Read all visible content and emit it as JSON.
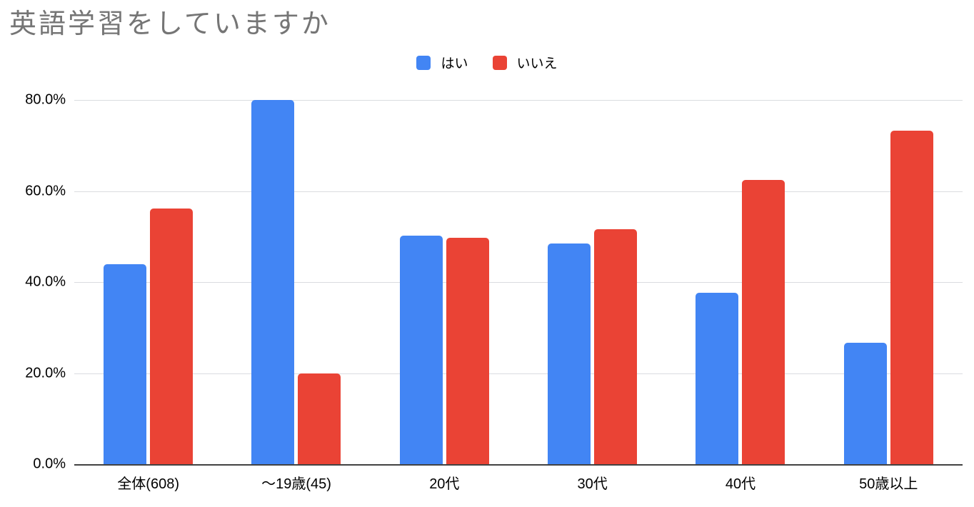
{
  "title": "英語学習をしていますか",
  "chart_data": {
    "type": "bar",
    "title": "英語学習をしていますか",
    "categories": [
      "全体(608)",
      "～19歳(45)",
      "20代",
      "30代",
      "40代",
      "50歳以上"
    ],
    "series": [
      {
        "key": "yes",
        "name": "はい",
        "color": "#4285F4",
        "values": [
          43.9,
          80.0,
          50.2,
          48.4,
          37.6,
          26.7
        ]
      },
      {
        "key": "no",
        "name": "いいえ",
        "color": "#EA4335",
        "values": [
          56.1,
          20.0,
          49.8,
          51.6,
          62.4,
          73.3
        ]
      }
    ],
    "xlabel": "",
    "ylabel": "",
    "ylim": [
      0,
      80
    ],
    "y_ticks": [
      "80.0%",
      "60.0%",
      "40.0%",
      "20.0%",
      "0.0%"
    ],
    "grid": true,
    "legend_position": "top"
  },
  "colors": {
    "series_yes": "#4285F4",
    "series_no": "#EA4335",
    "title_text": "#757575",
    "gridline": "#dadce0",
    "axis_line": "#424242",
    "label_text": "#000000",
    "background": "#ffffff"
  }
}
